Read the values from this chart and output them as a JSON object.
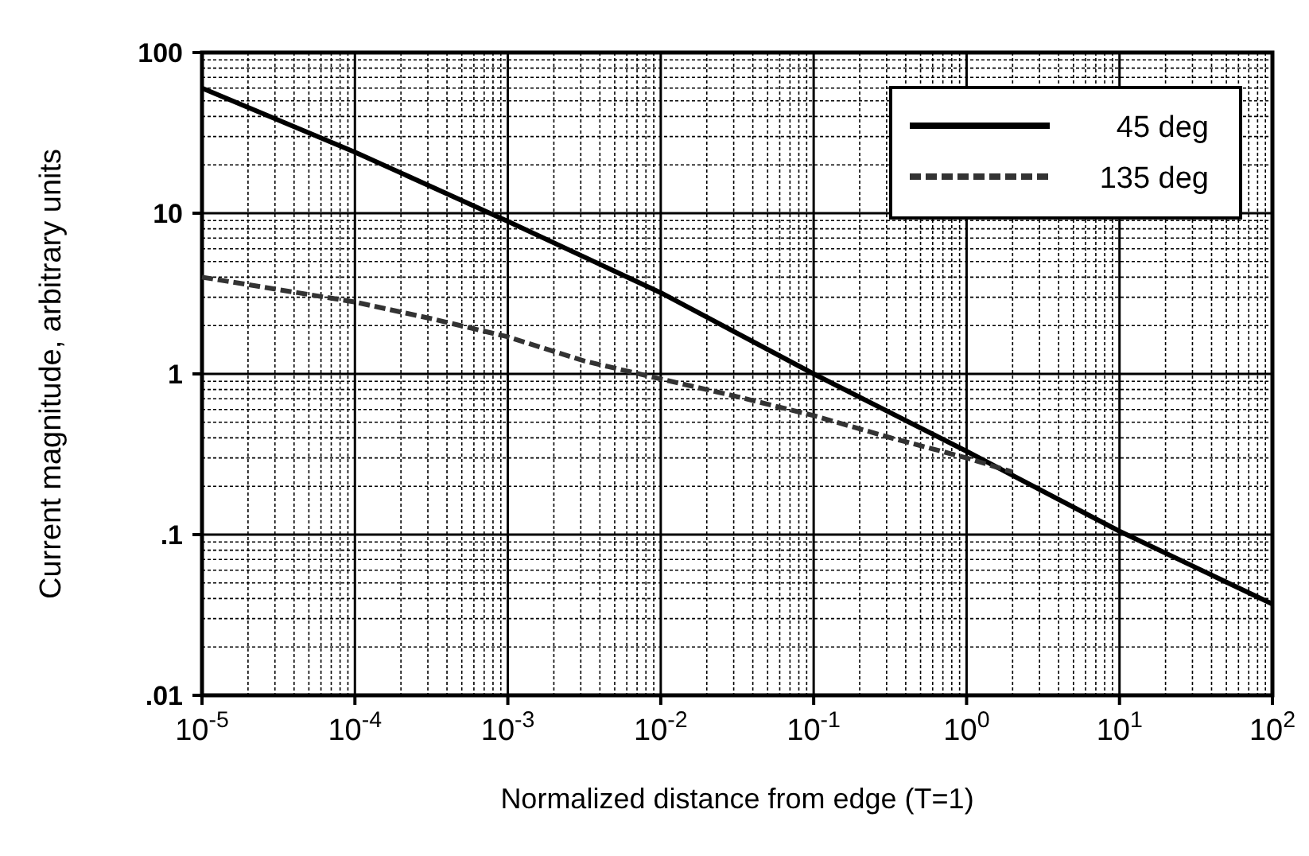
{
  "chart_data": {
    "type": "line",
    "xlabel": "Normalized distance from edge (T=1)",
    "ylabel": "Current magnitude,  arbitrary units",
    "log": "xy",
    "grid": true,
    "legend": "top right",
    "xlim": [
      1e-05,
      100
    ],
    "ylim": [
      0.01,
      100
    ],
    "xticks": [
      {
        "value": 1e-05,
        "label": "10$^{-5}$"
      },
      {
        "value": 0.0001,
        "label": "10$^{-4}$"
      },
      {
        "value": 0.001,
        "label": "10$^{-3}$"
      },
      {
        "value": 0.01,
        "label": "10$^{-2}$"
      },
      {
        "value": 0.1,
        "label": "10$^{-1}$"
      },
      {
        "value": 1,
        "label": "10$^{0}$"
      },
      {
        "value": 10,
        "label": "10$^{1}$"
      },
      {
        "value": 100,
        "label": "10$^{2}$"
      }
    ],
    "yticks": [
      {
        "value": 0.01,
        "label": ".01"
      },
      {
        "value": 0.1,
        "label": ".1"
      },
      1,
      10,
      100
    ],
    "series": [
      {
        "name": "45 deg",
        "color": "#000000",
        "line_style": "solid",
        "x": [
          1e-05,
          0.0001,
          0.001,
          0.01,
          0.1,
          1,
          10,
          100
        ],
        "values": [
          60,
          24,
          8.9,
          3.2,
          1,
          0.33,
          0.105,
          0.037
        ]
      },
      {
        "name": "135 deg",
        "color": "#333333",
        "line_style": "dashed",
        "x": [
          1e-05,
          0.0001,
          0.00032,
          0.001,
          0.0032,
          0.01,
          0.032,
          0.1,
          0.32,
          1,
          2
        ],
        "values": [
          4,
          2.8,
          2.2,
          1.7,
          1.2,
          0.93,
          0.72,
          0.55,
          0.4,
          0.3,
          0.245
        ]
      }
    ]
  }
}
